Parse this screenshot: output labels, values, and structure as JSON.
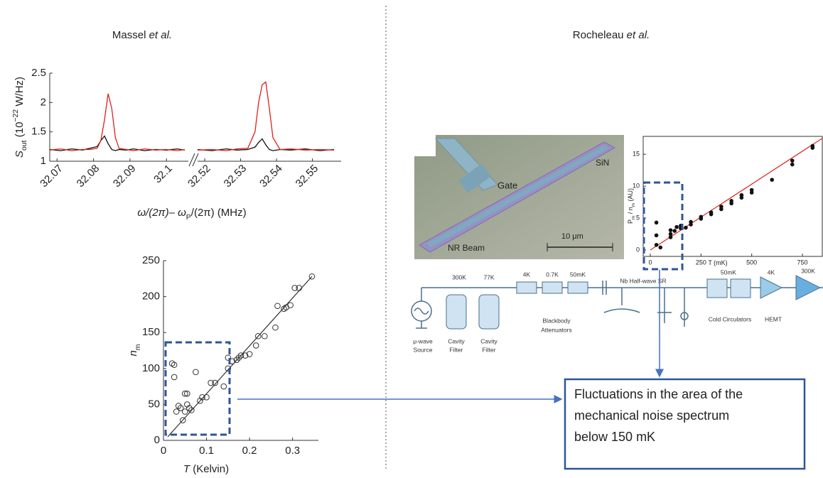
{
  "left_panel": {
    "title": "Massel",
    "etal": "et al."
  },
  "right_panel": {
    "title": "Rocheleau",
    "etal": "et al."
  },
  "chart_data": [
    {
      "type": "line",
      "ylabel": [
        {
          "text": "S",
          "style": "italic"
        },
        {
          "text": "out",
          "style": "sub"
        },
        {
          "text": " (10",
          "style": "plain"
        },
        {
          "text": "−22",
          "style": "sup"
        },
        {
          "text": " W/Hz)",
          "style": "plain"
        }
      ],
      "xlabel": [
        {
          "text": "ω/(2π)– ω",
          "style": "italic"
        },
        {
          "text": "P",
          "style": "sub"
        },
        {
          "text": "/(2π) (MHz)",
          "style": "plain"
        }
      ],
      "x": [
        32.068,
        32.071,
        32.074,
        32.077,
        32.079,
        32.081,
        32.082,
        32.083,
        32.084,
        32.085,
        32.086,
        32.087,
        32.089,
        32.091,
        32.094,
        32.097,
        32.1,
        32.103,
        32.105
      ],
      "series": [
        {
          "color": "#111111",
          "values": [
            1.2,
            1.18,
            1.21,
            1.19,
            1.22,
            1.25,
            1.35,
            1.43,
            1.3,
            1.2,
            1.18,
            1.2,
            1.19,
            1.21,
            1.18,
            1.2,
            1.19,
            1.21,
            1.19
          ]
        },
        {
          "color": "#e0201b",
          "values": [
            1.19,
            1.21,
            1.18,
            1.2,
            1.2,
            1.22,
            1.35,
            1.7,
            2.15,
            1.9,
            1.4,
            1.22,
            1.2,
            1.18,
            1.21,
            1.19,
            1.2,
            1.18,
            1.2
          ]
        }
      ],
      "xlim": [
        32.068,
        32.106
      ],
      "xticks": [
        32.07,
        32.08,
        32.09,
        32.1
      ],
      "xtick_rotation": -45,
      "ylim": [
        1,
        2.5
      ],
      "yticks": [
        1,
        1.5,
        2,
        2.5
      ]
    },
    {
      "type": "line",
      "x": [
        32.518,
        32.522,
        32.526,
        32.529,
        32.532,
        32.534,
        32.535,
        32.536,
        32.537,
        32.538,
        32.539,
        32.541,
        32.544,
        32.548,
        32.552,
        32.556
      ],
      "series": [
        {
          "color": "#111111",
          "values": [
            1.2,
            1.18,
            1.21,
            1.19,
            1.2,
            1.24,
            1.32,
            1.38,
            1.28,
            1.2,
            1.18,
            1.2,
            1.19,
            1.21,
            1.18,
            1.2
          ]
        },
        {
          "color": "#e0201b",
          "values": [
            1.19,
            1.2,
            1.18,
            1.21,
            1.22,
            1.5,
            2.0,
            2.3,
            2.35,
            1.9,
            1.4,
            1.2,
            1.21,
            1.19,
            1.2,
            1.19
          ]
        }
      ],
      "xlim": [
        32.518,
        32.558
      ],
      "xticks": [
        32.52,
        32.53,
        32.54,
        32.55
      ],
      "xtick_rotation": -45,
      "ylim": [
        1,
        2.5
      ]
    },
    {
      "type": "scatter",
      "ylabel": [
        {
          "text": "n",
          "style": "italic"
        },
        {
          "text": "m",
          "style": "sub"
        }
      ],
      "xlabel": [
        {
          "text": "T",
          "style": "italic"
        },
        {
          "text": " (Kelvin)",
          "style": "plain"
        }
      ],
      "x": [
        0.02,
        0.025,
        0.025,
        0.03,
        0.035,
        0.04,
        0.045,
        0.05,
        0.05,
        0.055,
        0.055,
        0.06,
        0.065,
        0.075,
        0.085,
        0.09,
        0.1,
        0.11,
        0.12,
        0.14,
        0.15,
        0.15,
        0.16,
        0.17,
        0.175,
        0.18,
        0.19,
        0.2,
        0.215,
        0.22,
        0.235,
        0.26,
        0.265,
        0.28,
        0.285,
        0.295,
        0.305,
        0.315,
        0.345
      ],
      "values": [
        107,
        105,
        88,
        40,
        48,
        45,
        28,
        40,
        65,
        65,
        50,
        45,
        42,
        95,
        55,
        60,
        60,
        80,
        80,
        75,
        115,
        100,
        110,
        112,
        115,
        118,
        118,
        120,
        132,
        145,
        145,
        157,
        187,
        183,
        185,
        188,
        212,
        212,
        228
      ],
      "marker": "open",
      "color": "#333333",
      "fit": {
        "x": [
          0.01,
          0.345
        ],
        "y": [
          5,
          228
        ],
        "color": "#333333"
      },
      "xlim": [
        0,
        0.36
      ],
      "xticks": [
        0,
        0.1,
        0.2,
        0.3
      ],
      "ylim": [
        0,
        250
      ],
      "yticks": [
        0,
        50,
        100,
        150,
        200,
        250
      ]
    },
    {
      "type": "scatter",
      "ylabel": [
        {
          "text": "P",
          "style": "plain"
        },
        {
          "text": "m",
          "style": "sub"
        },
        {
          "text": " / n",
          "style": "plain"
        },
        {
          "text": "m",
          "style": "sub"
        },
        {
          "text": " (AU)",
          "style": "plain"
        }
      ],
      "xlabel": [
        {
          "text": "T (mK)",
          "style": "plain"
        }
      ],
      "x": [
        30,
        30,
        30,
        50,
        100,
        100,
        100,
        120,
        130,
        150,
        150,
        175,
        200,
        200,
        250,
        250,
        300,
        300,
        350,
        350,
        400,
        400,
        450,
        450,
        500,
        500,
        600,
        700,
        700,
        800,
        800
      ],
      "values": [
        4.3,
        2.3,
        0.8,
        0.4,
        2.0,
        2.5,
        3.1,
        3.0,
        3.6,
        3.4,
        3.8,
        3.5,
        4.0,
        4.4,
        4.9,
        5.2,
        5.6,
        5.9,
        6.4,
        6.8,
        7.3,
        7.7,
        8.2,
        8.6,
        9.0,
        9.4,
        11.0,
        13.4,
        14.0,
        16.0,
        16.3
      ],
      "marker": "filled",
      "color": "#111111",
      "frame": true,
      "fit": {
        "x": [
          0,
          848
        ],
        "y": [
          0,
          17.5
        ],
        "color": "#e0201b"
      },
      "xlim": [
        -35,
        848
      ],
      "xticks": [
        0,
        250,
        500,
        750
      ],
      "ylim": [
        -1,
        17.8
      ],
      "yticks": [
        0,
        5,
        10,
        15
      ]
    }
  ],
  "device_image": {
    "labels": [
      "Gate",
      "SiN",
      "NR Beam"
    ],
    "scale_bar": "10 μm"
  },
  "circuit": {
    "temperatures": [
      "300K",
      "77K",
      "4K",
      "0.7K",
      "50mK",
      "Nb Half-wave SR",
      "50mK",
      "4K",
      "300K"
    ],
    "labels": [
      "Blackbody",
      "Attenuators",
      "Cold Circulators",
      "HEMT",
      "μ-wave",
      "Source",
      "Cavity",
      "Filter",
      "Cavity",
      "Filter"
    ]
  },
  "annotation": {
    "lines": [
      "Fluctuations in the area of the",
      "mechanical noise spectrum",
      "below 150 mK"
    ]
  }
}
